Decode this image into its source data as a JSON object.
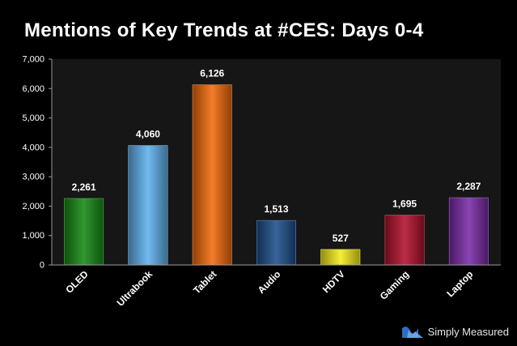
{
  "title": "Mentions of Key Trends at #CES: Days 0-4",
  "branding": {
    "label": "Simply Measured",
    "icon": "simply-measured-logo-icon"
  },
  "colors": {
    "background": "#000000",
    "plot_area": "#161616",
    "axis": "#9a9a9a",
    "text": "#ffffff"
  },
  "chart_data": {
    "type": "bar",
    "title": "Mentions of Key Trends at #CES: Days 0-4",
    "categories": [
      "OLED",
      "Ultrabook",
      "Tablet",
      "Audio",
      "HDTV",
      "Gaming",
      "Laptop"
    ],
    "values": [
      2261,
      4060,
      6126,
      1513,
      527,
      1695,
      2287
    ],
    "value_labels": [
      "2,261",
      "4,060",
      "6,126",
      "1,513",
      "527",
      "1,695",
      "2,287"
    ],
    "bar_colors": [
      "#168a14",
      "#5fb1ef",
      "#f26a0c",
      "#1d4f8c",
      "#f5ec1a",
      "#b3102c",
      "#7a2aa8"
    ],
    "ylim": [
      0,
      7000
    ],
    "yticks": [
      0,
      1000,
      2000,
      3000,
      4000,
      5000,
      6000,
      7000
    ],
    "ytick_labels": [
      "0",
      "1,000",
      "2,000",
      "3,000",
      "4,000",
      "5,000",
      "6,000",
      "7,000"
    ],
    "xlabel": "",
    "ylabel": "",
    "grid": false,
    "legend": "none"
  }
}
